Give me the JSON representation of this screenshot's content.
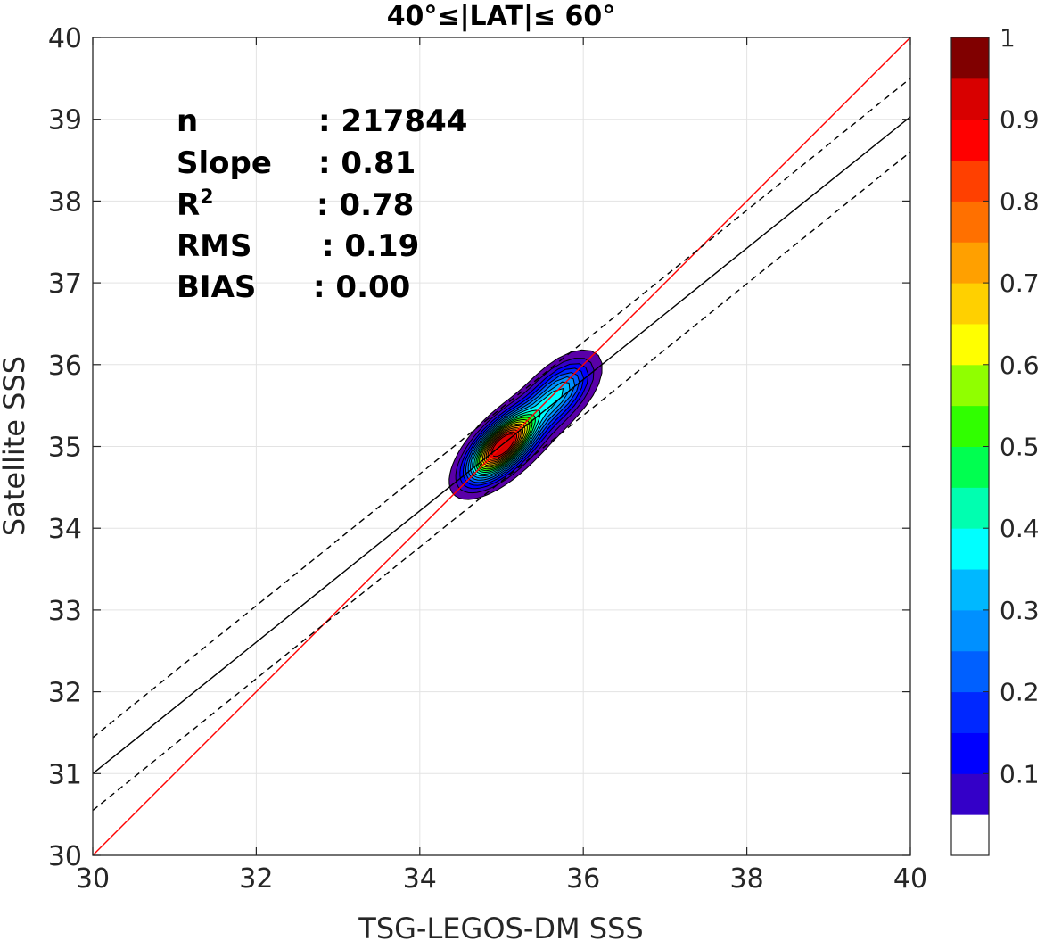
{
  "chart_data": {
    "type": "contour",
    "title": "40°≤|LAT|≤ 60°",
    "xlabel": "TSG-LEGOS-DM SSS",
    "ylabel": "Satellite SSS",
    "xlim": [
      30,
      40
    ],
    "ylim": [
      30,
      40
    ],
    "xticks": [
      "30",
      "32",
      "34",
      "36",
      "38",
      "40"
    ],
    "yticks": [
      "30",
      "31",
      "32",
      "33",
      "34",
      "35",
      "36",
      "37",
      "38",
      "39",
      "40"
    ],
    "grid": true,
    "stats": [
      {
        "label": "n",
        "value": ": 217844"
      },
      {
        "label": "Slope",
        "value": ": 0.81"
      },
      {
        "label": "R",
        "sup": "2",
        "value": ": 0.78"
      },
      {
        "label": "RMS",
        "value": ": 0.19"
      },
      {
        "label": "BIAS",
        "value": ": 0.00"
      }
    ],
    "lines": [
      {
        "name": "one-to-one",
        "color": "#ff0000",
        "dash": "solid",
        "x": [
          30,
          40
        ],
        "y": [
          30,
          40
        ]
      },
      {
        "name": "regression",
        "color": "#000000",
        "dash": "solid",
        "x": [
          30,
          40
        ],
        "y": [
          31.0,
          39.03
        ]
      },
      {
        "name": "regression-plus-2sd",
        "color": "#000000",
        "dash": "dashed",
        "x": [
          30,
          40
        ],
        "y": [
          31.44,
          39.5
        ]
      },
      {
        "name": "regression-minus-2sd",
        "color": "#000000",
        "dash": "dashed",
        "x": [
          30,
          40
        ],
        "y": [
          30.55,
          38.6
        ]
      }
    ],
    "density_peak": {
      "x": 35.0,
      "y": 35.0,
      "value": 1.0
    },
    "secondary_peak": {
      "x": 35.72,
      "y": 35.68,
      "value": 0.35
    },
    "colorbar": {
      "levels": [
        0,
        0.05,
        0.1,
        0.15,
        0.2,
        0.25,
        0.3,
        0.35,
        0.4,
        0.45,
        0.5,
        0.55,
        0.6,
        0.65,
        0.7,
        0.75,
        0.8,
        0.85,
        0.9,
        0.95,
        1.0
      ],
      "colors": [
        "#ffffff",
        "#5a00a8",
        "#3400c8",
        "#0000ff",
        "#0028ff",
        "#0060ff",
        "#0090ff",
        "#00b8ff",
        "#00ffff",
        "#00ffb0",
        "#00ff50",
        "#30ff00",
        "#90ff00",
        "#ffff00",
        "#ffd000",
        "#ffa000",
        "#ff7000",
        "#ff4000",
        "#ff0000",
        "#d80000",
        "#800000"
      ],
      "ticks": [
        "0.1",
        "0.2",
        "0.3",
        "0.4",
        "0.5",
        "0.6",
        "0.7",
        "0.8",
        "0.9",
        "1"
      ],
      "tick_values": [
        0.1,
        0.2,
        0.3,
        0.4,
        0.5,
        0.6,
        0.7,
        0.8,
        0.9,
        1.0
      ]
    }
  }
}
